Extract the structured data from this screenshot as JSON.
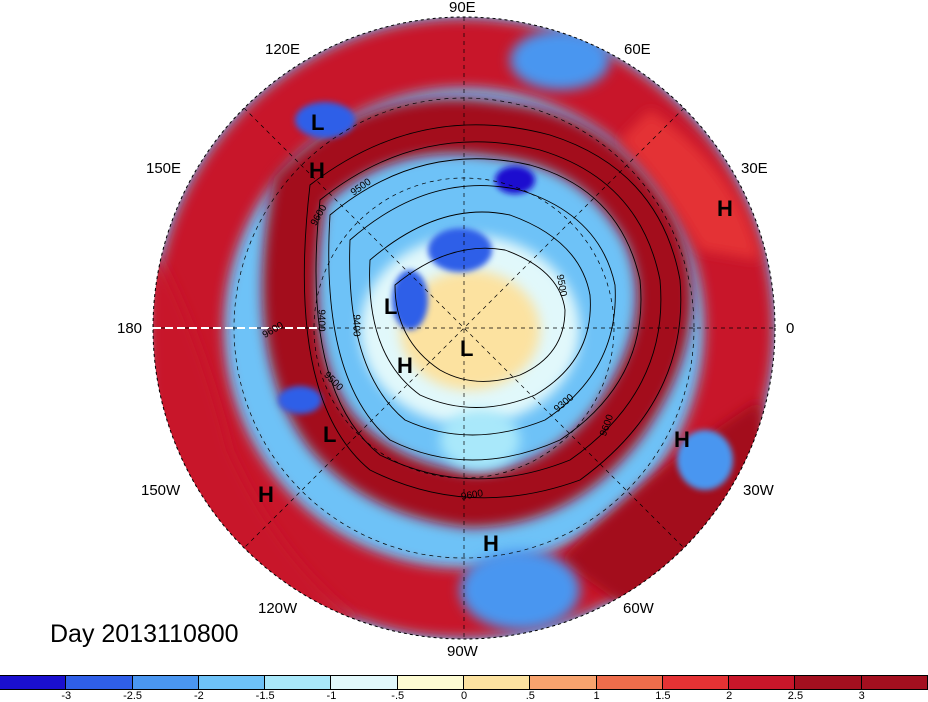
{
  "map": {
    "day_label": "Day 2013110800",
    "longitude_labels": [
      {
        "id": "90e",
        "text": "90E"
      },
      {
        "id": "60e",
        "text": "60E"
      },
      {
        "id": "120e",
        "text": "120E"
      },
      {
        "id": "30e",
        "text": "30E"
      },
      {
        "id": "150e",
        "text": "150E"
      },
      {
        "id": "180",
        "text": "180"
      },
      {
        "id": "0",
        "text": "0"
      },
      {
        "id": "150w",
        "text": "150W"
      },
      {
        "id": "30w",
        "text": "30W"
      },
      {
        "id": "120w",
        "text": "120W"
      },
      {
        "id": "60w",
        "text": "60W"
      },
      {
        "id": "90w",
        "text": "90W"
      }
    ],
    "pressure_centers": [
      {
        "id": "l-1",
        "text": "L"
      },
      {
        "id": "h-1",
        "text": "H"
      },
      {
        "id": "h-2",
        "text": "H"
      },
      {
        "id": "l-2",
        "text": "L"
      },
      {
        "id": "l-3",
        "text": "L"
      },
      {
        "id": "h-3",
        "text": "H"
      },
      {
        "id": "l-4",
        "text": "L"
      },
      {
        "id": "h-4",
        "text": "H"
      },
      {
        "id": "h-5",
        "text": "H"
      },
      {
        "id": "h-6",
        "text": "H"
      }
    ],
    "contour_labels": [
      "9500",
      "9600",
      "9400",
      "9500",
      "9600",
      "9500",
      "9300",
      "9600",
      "9600",
      "9400"
    ],
    "colorbar": {
      "colors": [
        "#1a0fcf",
        "#2f5fe8",
        "#4a96f0",
        "#6ec2f7",
        "#a9e8fa",
        "#e1f8fb",
        "#fdfbd2",
        "#fce2a0",
        "#f7a36e",
        "#ee6d4b",
        "#e43234",
        "#c8162a",
        "#a30f1f"
      ],
      "tick_labels": [
        "-3",
        "-2.5",
        "-2",
        "-1.5",
        "-1",
        "-.5",
        "0",
        ".5",
        "1",
        "1.5",
        "2",
        "2.5",
        "3"
      ]
    }
  }
}
